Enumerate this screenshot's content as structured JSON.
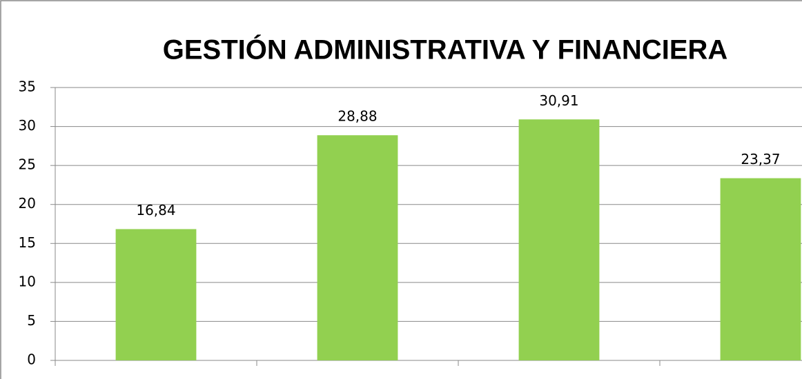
{
  "chart_data": {
    "type": "bar",
    "title": "GESTIÓN ADMINISTRATIVA Y FINANCIERA",
    "categories": [
      null,
      null,
      null,
      null
    ],
    "values": [
      16.84,
      28.88,
      30.91,
      23.37
    ],
    "value_labels": [
      "16,84",
      "28,88",
      "30,91",
      "23,37"
    ],
    "color": "#92d050",
    "ylim": [
      0,
      35
    ],
    "yticks": [
      0,
      5,
      10,
      15,
      20,
      25,
      30,
      35
    ],
    "grid": true
  }
}
